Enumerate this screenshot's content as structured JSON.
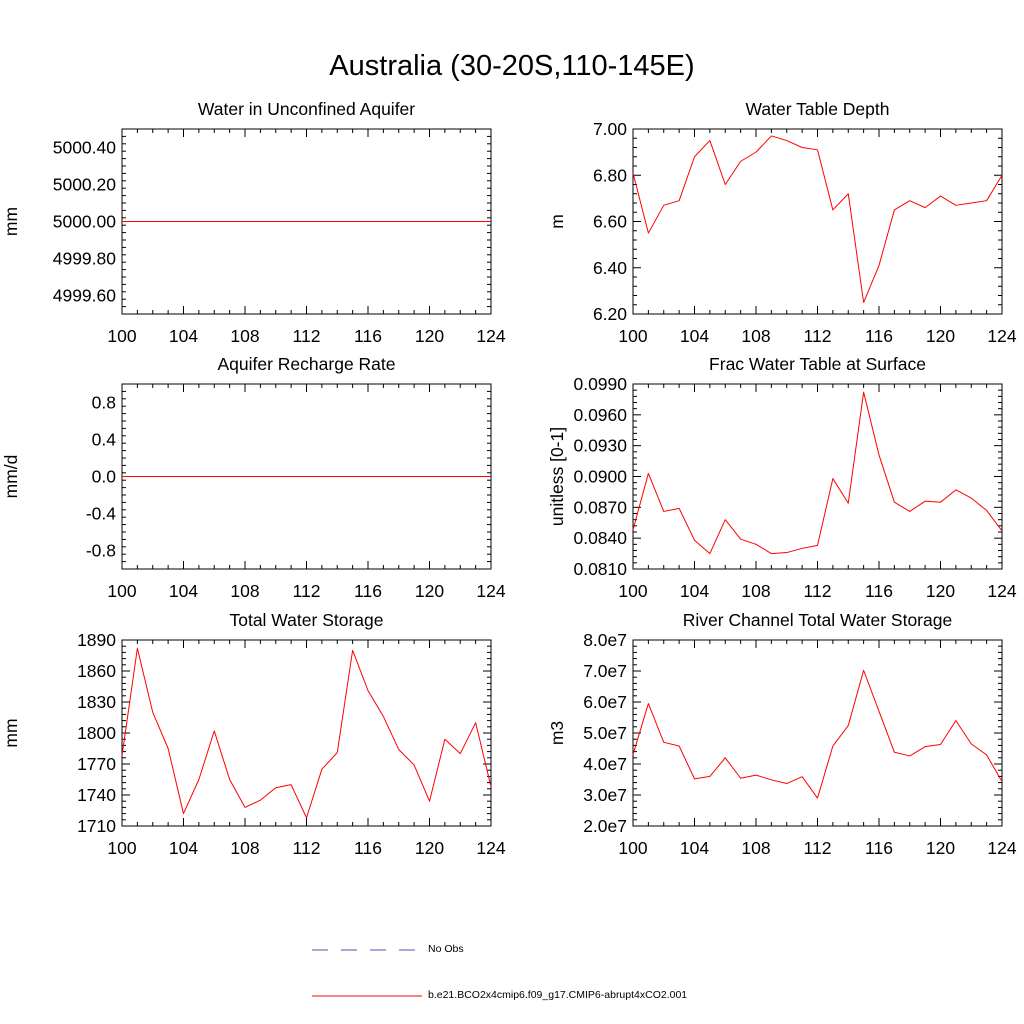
{
  "figure": {
    "title": "Australia (30-20S,110-145E)"
  },
  "legend": {
    "items": [
      {
        "label": "No Obs",
        "style": "dashed",
        "color": "#4a5aa8"
      },
      {
        "label": "b.e21.BCO2x4cmip6.f09_g17.CMIP6-abrupt4xCO2.001",
        "style": "solid",
        "color": "#ff0000"
      }
    ]
  },
  "chart_data": [
    {
      "type": "line",
      "title": "Water in Unconfined Aquifer",
      "ylabel": "mm",
      "xlim": [
        100,
        124
      ],
      "ylim": [
        4999.5,
        5000.5
      ],
      "xticks": [
        100,
        104,
        108,
        112,
        116,
        120,
        124
      ],
      "yticks": [
        4999.6,
        4999.8,
        5000.0,
        5000.2,
        5000.4
      ],
      "ytick_labels": [
        "4999.60",
        "4999.80",
        "5000.00",
        "5000.20",
        "5000.40"
      ],
      "x": [
        100,
        124
      ],
      "series": [
        {
          "color": "#ff0000",
          "values": [
            5000.0,
            5000.0
          ]
        }
      ]
    },
    {
      "type": "line",
      "title": "Water Table Depth",
      "ylabel": "m",
      "xlim": [
        100,
        124
      ],
      "ylim": [
        6.2,
        7.0
      ],
      "xticks": [
        100,
        104,
        108,
        112,
        116,
        120,
        124
      ],
      "yticks": [
        6.2,
        6.4,
        6.6,
        6.8,
        7.0
      ],
      "ytick_labels": [
        "6.20",
        "6.40",
        "6.60",
        "6.80",
        "7.00"
      ],
      "x": [
        100,
        101,
        102,
        103,
        104,
        105,
        106,
        107,
        108,
        109,
        110,
        111,
        112,
        113,
        114,
        115,
        116,
        117,
        118,
        119,
        120,
        121,
        122,
        123,
        124
      ],
      "series": [
        {
          "color": "#ff0000",
          "values": [
            6.81,
            6.55,
            6.67,
            6.69,
            6.88,
            6.95,
            6.76,
            6.86,
            6.9,
            6.97,
            6.95,
            6.92,
            6.91,
            6.65,
            6.72,
            6.25,
            6.41,
            6.65,
            6.69,
            6.66,
            6.71,
            6.67,
            6.68,
            6.69,
            6.8
          ]
        }
      ]
    },
    {
      "type": "line",
      "title": "Aquifer Recharge Rate",
      "ylabel": "mm/d",
      "xlim": [
        100,
        124
      ],
      "ylim": [
        -1.0,
        1.0
      ],
      "xticks": [
        100,
        104,
        108,
        112,
        116,
        120,
        124
      ],
      "yticks": [
        -0.8,
        -0.4,
        0.0,
        0.4,
        0.8
      ],
      "ytick_labels": [
        "-0.8",
        "-0.4",
        "0.0",
        "0.4",
        "0.8"
      ],
      "x": [
        100,
        124
      ],
      "series": [
        {
          "color": "#ff0000",
          "values": [
            0.0,
            0.0
          ]
        }
      ]
    },
    {
      "type": "line",
      "title": "Frac Water Table at Surface",
      "ylabel": "unitless [0-1]",
      "xlim": [
        100,
        124
      ],
      "ylim": [
        0.081,
        0.099
      ],
      "xticks": [
        100,
        104,
        108,
        112,
        116,
        120,
        124
      ],
      "yticks": [
        0.081,
        0.084,
        0.087,
        0.09,
        0.093,
        0.096,
        0.099
      ],
      "ytick_labels": [
        "0.0810",
        "0.0840",
        "0.0870",
        "0.0900",
        "0.0930",
        "0.0960",
        "0.0990"
      ],
      "x": [
        100,
        101,
        102,
        103,
        104,
        105,
        106,
        107,
        108,
        109,
        110,
        111,
        112,
        113,
        114,
        115,
        116,
        117,
        118,
        119,
        120,
        121,
        122,
        123,
        124
      ],
      "series": [
        {
          "color": "#ff0000",
          "values": [
            0.0848,
            0.0903,
            0.0866,
            0.0869,
            0.0838,
            0.0825,
            0.0858,
            0.0839,
            0.0834,
            0.0825,
            0.0826,
            0.083,
            0.0833,
            0.0898,
            0.0874,
            0.0982,
            0.0921,
            0.0875,
            0.0866,
            0.0876,
            0.0875,
            0.0887,
            0.0879,
            0.0867,
            0.0847
          ]
        }
      ]
    },
    {
      "type": "line",
      "title": "Total Water Storage",
      "ylabel": "mm",
      "xlim": [
        100,
        124
      ],
      "ylim": [
        1710,
        1890
      ],
      "xticks": [
        100,
        104,
        108,
        112,
        116,
        120,
        124
      ],
      "yticks": [
        1710,
        1740,
        1770,
        1800,
        1830,
        1860,
        1890
      ],
      "ytick_labels": [
        "1710",
        "1740",
        "1770",
        "1800",
        "1830",
        "1860",
        "1890"
      ],
      "x": [
        100,
        101,
        102,
        103,
        104,
        105,
        106,
        107,
        108,
        109,
        110,
        111,
        112,
        113,
        114,
        115,
        116,
        117,
        118,
        119,
        120,
        121,
        122,
        123,
        124
      ],
      "series": [
        {
          "color": "#ff0000",
          "values": [
            1778,
            1882,
            1820,
            1785,
            1722,
            1755,
            1802,
            1755,
            1728,
            1735,
            1747,
            1750,
            1718,
            1765,
            1781,
            1880,
            1841,
            1816,
            1784,
            1769,
            1734,
            1794,
            1780,
            1810,
            1748
          ]
        }
      ]
    },
    {
      "type": "line",
      "title": "River Channel Total Water Storage",
      "ylabel": "m3",
      "xlim": [
        100,
        124
      ],
      "ylim": [
        20000000,
        80000000
      ],
      "xticks": [
        100,
        104,
        108,
        112,
        116,
        120,
        124
      ],
      "yticks": [
        20000000,
        30000000,
        40000000,
        50000000,
        60000000,
        70000000,
        80000000
      ],
      "ytick_labels": [
        "2.0e7",
        "3.0e7",
        "4.0e7",
        "5.0e7",
        "6.0e7",
        "7.0e7",
        "8.0e7"
      ],
      "x": [
        100,
        101,
        102,
        103,
        104,
        105,
        106,
        107,
        108,
        109,
        110,
        111,
        112,
        113,
        114,
        115,
        116,
        117,
        118,
        119,
        120,
        121,
        122,
        123,
        124
      ],
      "series": [
        {
          "color": "#ff0000",
          "values": [
            43000000,
            59500000,
            47000000,
            45800000,
            35200000,
            36000000,
            42000000,
            35400000,
            36400000,
            34900000,
            33700000,
            35900000,
            29000000,
            45800000,
            52400000,
            70200000,
            57000000,
            43800000,
            42600000,
            45600000,
            46300000,
            54000000,
            46500000,
            42900000,
            34300000
          ]
        }
      ]
    }
  ]
}
